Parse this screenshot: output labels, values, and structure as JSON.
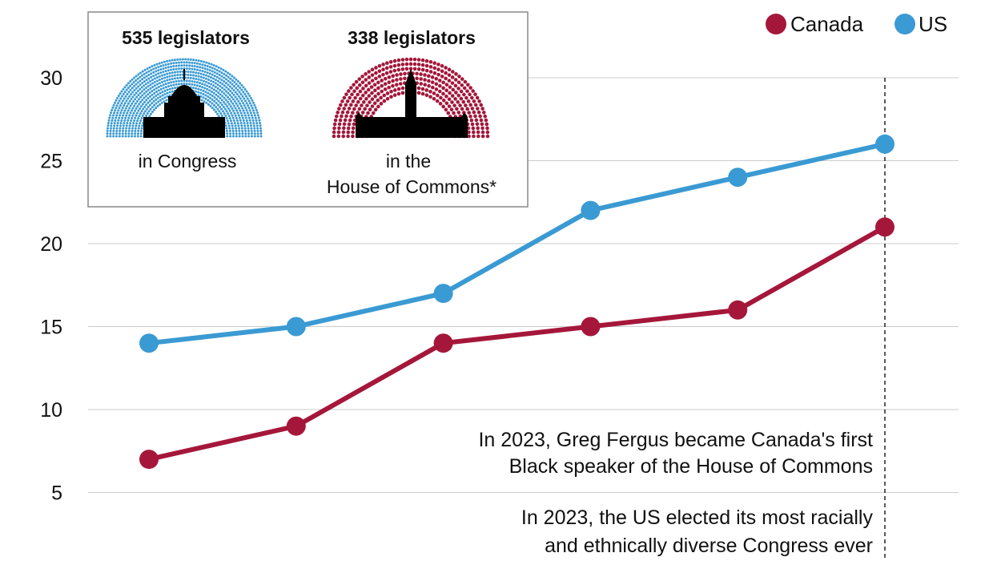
{
  "chart_data": {
    "type": "line",
    "ylim": [
      4,
      31
    ],
    "yticks": [
      5,
      10,
      15,
      20,
      25,
      30
    ],
    "grid": true,
    "legend_position": "top-right",
    "series": [
      {
        "name": "Canada",
        "color": "#a5173a",
        "values": [
          7,
          9,
          14,
          15,
          16,
          21
        ]
      },
      {
        "name": "US",
        "color": "#3a9ad3",
        "values": [
          14,
          15,
          17,
          22,
          24,
          26
        ]
      }
    ],
    "annotations": [
      {
        "lines": [
          "In 2023, Greg Fergus became Canada's first",
          "Black speaker of the House of Commons"
        ]
      },
      {
        "lines": [
          "In 2023, the US elected its most racially",
          "and ethnically diverse Congress ever"
        ]
      }
    ],
    "inset": {
      "us": {
        "title": "535 legislators",
        "caption": [
          "in Congress"
        ],
        "icon": "capitol-building-icon",
        "color": "#3a9ad3"
      },
      "canada": {
        "title": "338 legislators",
        "caption": [
          "in the",
          "House of Commons*"
        ],
        "icon": "parliament-building-icon",
        "color": "#a5173a"
      }
    }
  }
}
